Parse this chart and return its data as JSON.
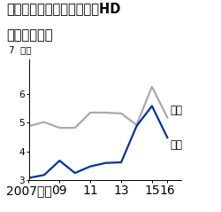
{
  "title_line1": "保険料等収入では第一生命HD",
  "title_line2": "が追い上げる",
  "unit_label": "兆円",
  "x_years": [
    2007,
    2008,
    2009,
    2010,
    2011,
    2012,
    2013,
    2014,
    2015,
    2016
  ],
  "nisshin_values": [
    4.88,
    5.02,
    4.82,
    4.82,
    5.35,
    5.35,
    5.32,
    4.92,
    6.25,
    5.18
  ],
  "daiichi_values": [
    3.08,
    3.18,
    3.68,
    3.25,
    3.48,
    3.6,
    3.62,
    4.88,
    5.58,
    4.48
  ],
  "nisshin_color": "#aaaaaa",
  "daiichi_color": "#003399",
  "nisshin_label": "日生",
  "daiichi_label": "第一",
  "x_ticks": [
    2007,
    2009,
    2011,
    2013,
    2015,
    2016
  ],
  "x_tick_labels": [
    "2007年度",
    "09",
    "11",
    "13",
    "15",
    "16"
  ],
  "ylim_min": 3.0,
  "ylim_max": 7.2,
  "yticks": [
    3,
    4,
    5,
    6
  ],
  "background_color": "#ffffff",
  "title_fontsize": 10.5,
  "axis_fontsize": 7.5,
  "label_fontsize": 8.5,
  "line_width": 1.6
}
